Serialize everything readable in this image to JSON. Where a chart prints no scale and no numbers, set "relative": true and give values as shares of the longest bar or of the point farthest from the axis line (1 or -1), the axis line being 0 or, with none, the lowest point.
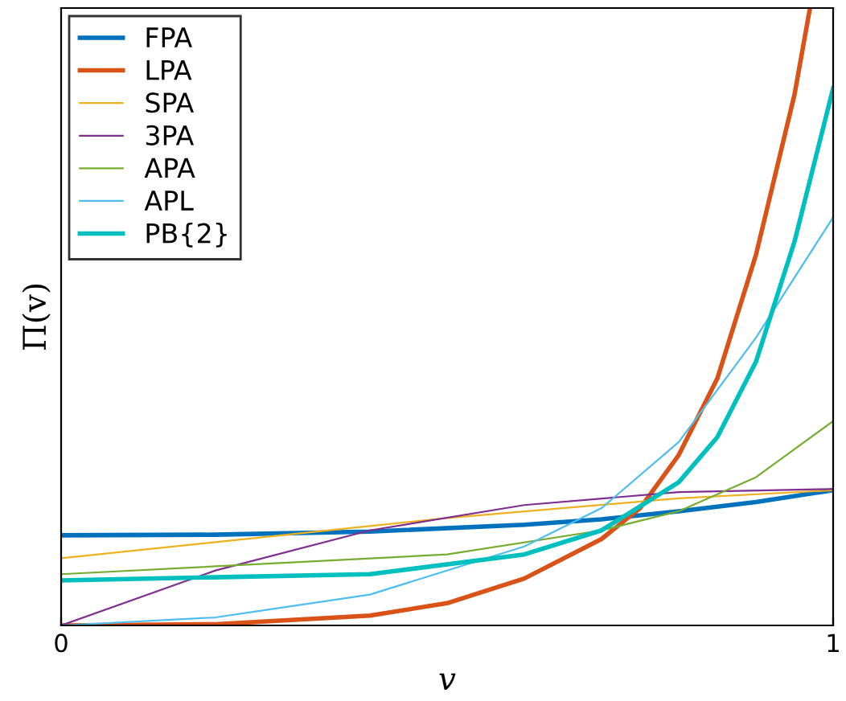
{
  "chart_data": {
    "type": "line",
    "relative": true,
    "xlabel": "v",
    "ylabel": "Π(v)",
    "xlim": [
      0,
      1
    ],
    "xticks": [
      0,
      1
    ],
    "tick_labels": "x",
    "legend": "top left",
    "grid": false,
    "series": [
      {
        "name": "FPA",
        "color": "#0072bd",
        "x": [
          0,
          0.2,
          0.4,
          0.6,
          0.7,
          0.8,
          0.9,
          1
        ],
        "values": [
          0.146,
          0.147,
          0.152,
          0.163,
          0.172,
          0.185,
          0.2,
          0.219
        ]
      },
      {
        "name": "LPA",
        "color": "#d95319",
        "x": [
          0,
          0.2,
          0.4,
          0.5,
          0.6,
          0.7,
          0.75,
          0.8,
          0.85,
          0.9,
          0.95,
          0.97
        ],
        "values": [
          0,
          0.002,
          0.016,
          0.036,
          0.076,
          0.14,
          0.19,
          0.276,
          0.4,
          0.6,
          0.86,
          1
        ]
      },
      {
        "name": "SPA",
        "color": "#edb120",
        "x": [
          0,
          0.2,
          0.5,
          0.8,
          1
        ],
        "values": [
          0.109,
          0.135,
          0.174,
          0.206,
          0.219
        ]
      },
      {
        "name": "3PA",
        "color": "#7e2f8e",
        "x": [
          0,
          0.2,
          0.4,
          0.6,
          0.8,
          1
        ],
        "values": [
          0,
          0.089,
          0.154,
          0.195,
          0.216,
          0.221
        ]
      },
      {
        "name": "APA",
        "color": "#77ac30",
        "x": [
          0,
          0.5,
          0.7,
          0.8,
          0.9,
          1
        ],
        "values": [
          0.083,
          0.115,
          0.154,
          0.185,
          0.24,
          0.331
        ]
      },
      {
        "name": "APL",
        "color": "#4dbeee",
        "x": [
          0,
          0.2,
          0.4,
          0.6,
          0.7,
          0.8,
          0.9,
          1
        ],
        "values": [
          0,
          0.013,
          0.05,
          0.128,
          0.19,
          0.297,
          0.466,
          0.661
        ]
      },
      {
        "name": "PB{2}",
        "color": "#00bfbf",
        "x": [
          0,
          0.4,
          0.6,
          0.7,
          0.8,
          0.85,
          0.9,
          0.95,
          1
        ],
        "values": [
          0.073,
          0.083,
          0.115,
          0.154,
          0.232,
          0.305,
          0.427,
          0.622,
          0.87
        ]
      }
    ]
  }
}
